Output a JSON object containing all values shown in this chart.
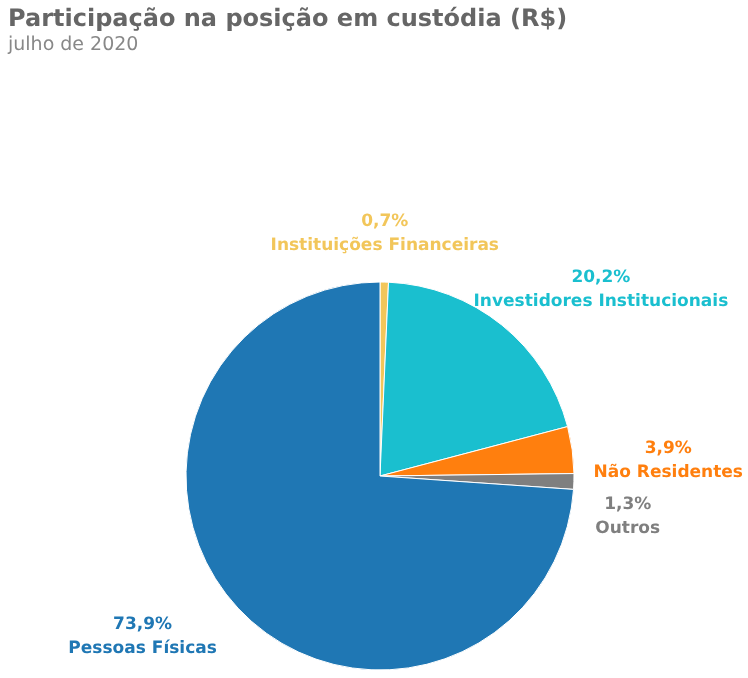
{
  "chart_data": {
    "type": "pie",
    "title": "Participação na posição em custódia (R$)",
    "subtitle": "julho de 2020",
    "categories": [
      "Instituições Financeiras",
      "Investidores Institucionais",
      "Não Residentes",
      "Outros",
      "Pessoas Físicas"
    ],
    "values": [
      0.7,
      20.2,
      3.9,
      1.3,
      73.9
    ],
    "value_labels": [
      "0,7%",
      "20,2%",
      "3,9%",
      "1,3%",
      "73,9%"
    ],
    "colors": [
      "#f2c65a",
      "#1abfcf",
      "#ff7f0e",
      "#7f7f7f",
      "#1f77b4"
    ]
  }
}
